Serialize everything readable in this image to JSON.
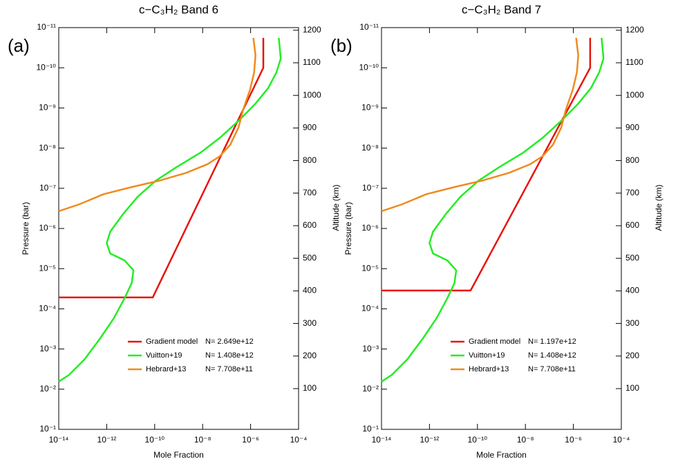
{
  "chart_data": [
    {
      "type": "line",
      "title": "c−C₃H₂ Band 6",
      "panel_label": "(a)",
      "xlabel": "Mole Fraction",
      "ylabel": "Pressure (bar)",
      "y2label": "Altitude (km)",
      "xscale": "log",
      "yscale": "log",
      "xlim": [
        1e-14,
        0.0001
      ],
      "ylim": [
        0.1,
        1e-11
      ],
      "y2lim": [
        -25,
        1208
      ],
      "xticks": [
        {
          "value": 1e-14,
          "label": "10⁻¹⁴"
        },
        {
          "value": 1e-12,
          "label": "10⁻¹²"
        },
        {
          "value": 1e-10,
          "label": "10⁻¹⁰"
        },
        {
          "value": 1e-08,
          "label": "10⁻⁸"
        },
        {
          "value": 1e-06,
          "label": "10⁻⁶"
        },
        {
          "value": 0.0001,
          "label": "10⁻⁴"
        }
      ],
      "yticks": [
        {
          "value": 1e-11,
          "label": "10⁻¹¹"
        },
        {
          "value": 1e-10,
          "label": "10⁻¹⁰"
        },
        {
          "value": 1e-09,
          "label": "10⁻⁹"
        },
        {
          "value": 1e-08,
          "label": "10⁻⁸"
        },
        {
          "value": 1e-07,
          "label": "10⁻⁷"
        },
        {
          "value": 1e-06,
          "label": "10⁻⁶"
        },
        {
          "value": 1e-05,
          "label": "10⁻⁵"
        },
        {
          "value": 0.0001,
          "label": "10⁻⁴"
        },
        {
          "value": 0.001,
          "label": "10⁻³"
        },
        {
          "value": 0.01,
          "label": "10⁻²"
        },
        {
          "value": 0.1,
          "label": "10⁻¹"
        }
      ],
      "y2ticks": [
        100,
        200,
        300,
        400,
        500,
        600,
        700,
        800,
        900,
        1000,
        1100,
        1200
      ],
      "legend": "lower right",
      "series": [
        {
          "name": "Gradient model",
          "column": "N= 2.649e+12",
          "color": "#e8120c",
          "x": [
            1e-14,
            8.3e-11,
            3.4e-06,
            3.4e-06
          ],
          "y": [
            5.2e-05,
            5.2e-05,
            1e-10,
            1.8e-11
          ]
        },
        {
          "name": "Vuitton+19",
          "column": "N= 1.408e+12",
          "color": "#22ee22",
          "x": [
            1.5e-05,
            1.8e-05,
            1.2e-05,
            5.4e-06,
            1.6e-06,
            3.1e-07,
            5.1e-08,
            8.1e-09,
            7.9e-10,
            1.1e-10,
            2e-11,
            4.8e-12,
            1.4e-12,
            1e-12,
            1.4e-12,
            5.5e-12,
            1.3e-11,
            1.1e-11,
            5.5e-12,
            2e-12,
            5.4e-13,
            1.2e-13,
            2.7e-14,
            1e-14
          ],
          "y": [
            1.8e-11,
            5.9e-11,
            1.3e-10,
            3.2e-10,
            7.8e-10,
            2.1e-09,
            5.6e-09,
            1.3e-08,
            3e-08,
            6.5e-08,
            1.6e-07,
            4.4e-07,
            1.2e-06,
            2.3e-06,
            4.2e-06,
            6.2e-06,
            1.1e-05,
            2.3e-05,
            5.5e-05,
            0.00017,
            0.00054,
            0.0018,
            0.0044,
            0.0065
          ]
        },
        {
          "name": "Hebrard+13",
          "column": "N= 7.708e+11",
          "color": "#f08a1c",
          "x": [
            1.3e-06,
            1.6e-06,
            1.4e-06,
            9.5e-07,
            4.9e-07,
            3.1e-07,
            1.4e-07,
            5.1e-08,
            1.6e-08,
            2.1e-09,
            1.5e-10,
            1.1e-11,
            7.4e-13,
            7.2e-14,
            1e-14
          ],
          "y": [
            1.8e-11,
            4.9e-11,
            1.3e-10,
            3.5e-10,
            1.1e-09,
            3.1e-09,
            8.3e-09,
            1.6e-08,
            2.5e-08,
            4.1e-08,
            6.5e-08,
            9.3e-08,
            1.4e-07,
            2.5e-07,
            3.7e-07
          ]
        }
      ]
    },
    {
      "type": "line",
      "title": "c−C₃H₂ Band 7",
      "panel_label": "(b)",
      "xlabel": "Mole Fraction",
      "ylabel": "Pressure (bar)",
      "y2label": "Altitude (km)",
      "xscale": "log",
      "yscale": "log",
      "xlim": [
        1e-14,
        0.0001
      ],
      "ylim": [
        0.1,
        1e-11
      ],
      "y2lim": [
        -25,
        1208
      ],
      "xticks": [
        {
          "value": 1e-14,
          "label": "10⁻¹⁴"
        },
        {
          "value": 1e-12,
          "label": "10⁻¹²"
        },
        {
          "value": 1e-10,
          "label": "10⁻¹⁰"
        },
        {
          "value": 1e-08,
          "label": "10⁻⁸"
        },
        {
          "value": 1e-06,
          "label": "10⁻⁶"
        },
        {
          "value": 0.0001,
          "label": "10⁻⁴"
        }
      ],
      "yticks": [
        {
          "value": 1e-11,
          "label": "10⁻¹¹"
        },
        {
          "value": 1e-10,
          "label": "10⁻¹⁰"
        },
        {
          "value": 1e-09,
          "label": "10⁻⁹"
        },
        {
          "value": 1e-08,
          "label": "10⁻⁸"
        },
        {
          "value": 1e-07,
          "label": "10⁻⁷"
        },
        {
          "value": 1e-06,
          "label": "10⁻⁶"
        },
        {
          "value": 1e-05,
          "label": "10⁻⁵"
        },
        {
          "value": 0.0001,
          "label": "10⁻⁴"
        },
        {
          "value": 0.001,
          "label": "10⁻³"
        },
        {
          "value": 0.01,
          "label": "10⁻²"
        },
        {
          "value": 0.1,
          "label": "10⁻¹"
        }
      ],
      "y2ticks": [
        100,
        200,
        300,
        400,
        500,
        600,
        700,
        800,
        900,
        1000,
        1100,
        1200
      ],
      "legend": "lower right",
      "series": [
        {
          "name": "Gradient model",
          "column": "N= 1.197e+12",
          "color": "#e8120c",
          "x": [
            1e-14,
            5.2e-11,
            5e-06,
            5e-06
          ],
          "y": [
            3.5e-05,
            3.5e-05,
            1e-10,
            1.8e-11
          ]
        },
        {
          "name": "Vuitton+19",
          "column": "N= 1.408e+12",
          "color": "#22ee22",
          "x": [
            1.5e-05,
            1.8e-05,
            1.2e-05,
            5.4e-06,
            1.6e-06,
            3.1e-07,
            5.1e-08,
            8.1e-09,
            7.9e-10,
            1.1e-10,
            2e-11,
            4.8e-12,
            1.4e-12,
            1e-12,
            1.4e-12,
            5.5e-12,
            1.3e-11,
            1.1e-11,
            5.5e-12,
            2e-12,
            5.4e-13,
            1.2e-13,
            2.7e-14,
            1e-14
          ],
          "y": [
            1.8e-11,
            5.9e-11,
            1.3e-10,
            3.2e-10,
            7.8e-10,
            2.1e-09,
            5.6e-09,
            1.3e-08,
            3e-08,
            6.5e-08,
            1.6e-07,
            4.4e-07,
            1.2e-06,
            2.3e-06,
            4.2e-06,
            6.2e-06,
            1.1e-05,
            2.3e-05,
            5.5e-05,
            0.00017,
            0.00054,
            0.0018,
            0.0044,
            0.0065
          ]
        },
        {
          "name": "Hebrard+13",
          "column": "N= 7.708e+11",
          "color": "#f08a1c",
          "x": [
            1.3e-06,
            1.6e-06,
            1.4e-06,
            9.5e-07,
            4.9e-07,
            3.1e-07,
            1.4e-07,
            5.1e-08,
            1.6e-08,
            2.1e-09,
            1.5e-10,
            1.1e-11,
            7.4e-13,
            7.2e-14,
            1e-14
          ],
          "y": [
            1.8e-11,
            4.9e-11,
            1.3e-10,
            3.5e-10,
            1.1e-09,
            3.1e-09,
            8.3e-09,
            1.6e-08,
            2.5e-08,
            4.1e-08,
            6.5e-08,
            9.3e-08,
            1.4e-07,
            2.5e-07,
            3.7e-07
          ]
        }
      ]
    }
  ]
}
